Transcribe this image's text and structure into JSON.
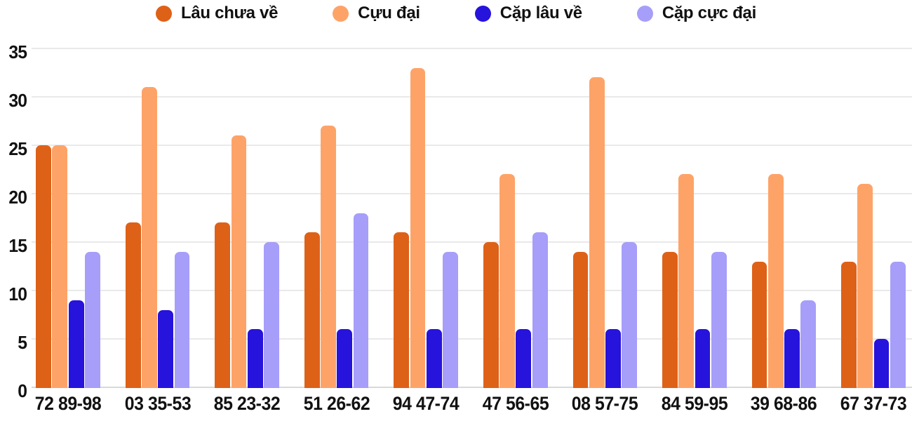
{
  "chart_data": {
    "type": "bar",
    "title": "",
    "categories": [
      "72 89-98",
      "03 35-53",
      "85 23-32",
      "51 26-62",
      "94 47-74",
      "47 56-65",
      "08 57-75",
      "84 59-95",
      "39 68-86",
      "67 37-73"
    ],
    "series": [
      {
        "name": "Lâu chưa về",
        "color": "#de6118",
        "values": [
          25,
          17,
          17,
          16,
          16,
          15,
          14,
          14,
          13,
          13
        ]
      },
      {
        "name": "Cựu đại",
        "color": "#fea368",
        "values": [
          25,
          31,
          26,
          27,
          33,
          22,
          32,
          22,
          22,
          21
        ]
      },
      {
        "name": "Cặp lâu về",
        "color": "#2613dc",
        "values": [
          9,
          8,
          6,
          6,
          6,
          6,
          6,
          6,
          6,
          5
        ]
      },
      {
        "name": "Cặp cực đại",
        "color": "#a69ef9",
        "values": [
          14,
          14,
          15,
          18,
          14,
          16,
          15,
          14,
          9,
          13
        ]
      }
    ],
    "xlabel": "",
    "ylabel": "",
    "y_axis": {
      "min": 0,
      "max": 35,
      "ticks": [
        0,
        5,
        10,
        15,
        20,
        25,
        30,
        35
      ]
    },
    "grid": true,
    "legend_position": "top",
    "colors": {
      "background": "#ffffff",
      "gridline": "#e9e9e9",
      "axis_line": "#d9d9d9",
      "text": "#111111"
    }
  }
}
